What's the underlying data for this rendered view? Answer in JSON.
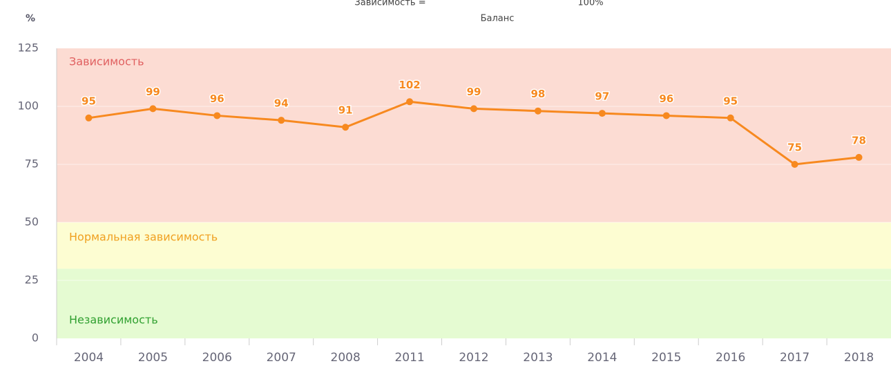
{
  "chart_data": {
    "type": "line",
    "annotations": [
      "Зависимость =",
      "100%",
      "Баланс"
    ],
    "ylabel": "%",
    "categories": [
      "2004",
      "2005",
      "2006",
      "2007",
      "2008",
      "2011",
      "2012",
      "2013",
      "2014",
      "2015",
      "2016",
      "2017",
      "2018"
    ],
    "series": [
      {
        "name": "Зависимость",
        "color": "#f7891f",
        "values": [
          95,
          99,
          96,
          94,
          91,
          102,
          99,
          98,
          97,
          96,
          95,
          75,
          78
        ]
      }
    ],
    "bands": [
      {
        "label": "Зависимость",
        "from": 50,
        "to": 125,
        "color": "#fcdcd3",
        "label_color": "#e06060"
      },
      {
        "label": "Нормальная зависимость",
        "from": 30,
        "to": 50,
        "color": "#fdfdd2",
        "label_color": "#f0a020"
      },
      {
        "label": "Независимость",
        "from": 0,
        "to": 30,
        "color": "#e5fbd2",
        "label_color": "#30a030"
      }
    ],
    "ylim": [
      0,
      125
    ],
    "yticks": [
      0,
      25,
      50,
      75,
      100,
      125
    ],
    "grid": true
  }
}
